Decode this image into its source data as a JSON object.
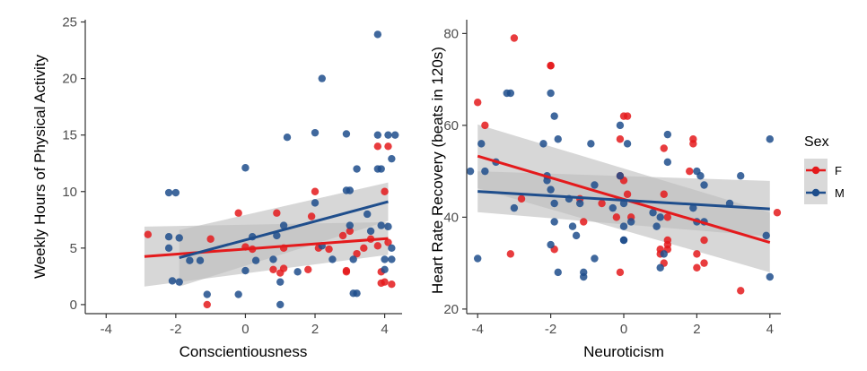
{
  "chart_data": [
    {
      "type": "scatter",
      "xlabel": "Conscientiousness",
      "ylabel": "Weekly Hours of Physical Activity",
      "xlim": [
        -4.6,
        4.5
      ],
      "ylim": [
        -0.8,
        25.2
      ],
      "xticks": [
        "-4",
        "-2",
        "0",
        "2",
        "4"
      ],
      "yticks": [
        "0",
        "5",
        "10",
        "15",
        "20",
        "25"
      ],
      "xtick_values": [
        -4,
        -2,
        0,
        2,
        4
      ],
      "ytick_values": [
        0,
        5,
        10,
        15,
        20,
        25
      ],
      "series": [
        {
          "name": "F",
          "points": [
            [
              -2.8,
              6.2
            ],
            [
              -1.1,
              0
            ],
            [
              -1.0,
              5.8
            ],
            [
              -0.2,
              8.1
            ],
            [
              0.0,
              5.1
            ],
            [
              0.2,
              4.9
            ],
            [
              0.8,
              3.1
            ],
            [
              0.9,
              8.1
            ],
            [
              1.0,
              2.8
            ],
            [
              1.1,
              3.2
            ],
            [
              1.1,
              5.0
            ],
            [
              1.8,
              3.1
            ],
            [
              1.9,
              7.8
            ],
            [
              2.0,
              10.0
            ],
            [
              2.1,
              5.0
            ],
            [
              2.4,
              4.9
            ],
            [
              2.8,
              6.1
            ],
            [
              2.9,
              3.0
            ],
            [
              2.9,
              2.9
            ],
            [
              3.0,
              6.5
            ],
            [
              3.2,
              4.5
            ],
            [
              3.4,
              5.0
            ],
            [
              3.6,
              5.8
            ],
            [
              3.8,
              14.0
            ],
            [
              3.8,
              5.2
            ],
            [
              3.9,
              2.9
            ],
            [
              3.9,
              1.9
            ],
            [
              4.0,
              10.0
            ],
            [
              4.0,
              2.0
            ],
            [
              4.1,
              14.0
            ],
            [
              4.1,
              5.5
            ],
            [
              4.2,
              1.8
            ]
          ],
          "fit": {
            "x_start": -2.9,
            "y_start": 4.25,
            "x_end": 4.1,
            "y_end": 5.85,
            "ci_lower_start": 1.6,
            "ci_upper_start": 6.9,
            "ci_lower_end": 4.4,
            "ci_upper_end": 7.3
          }
        },
        {
          "name": "M",
          "points": [
            [
              -2.2,
              9.9
            ],
            [
              -2.0,
              9.9
            ],
            [
              -2.2,
              6.0
            ],
            [
              -2.2,
              5.0
            ],
            [
              -2.1,
              2.1
            ],
            [
              -1.9,
              2.0
            ],
            [
              -1.9,
              5.9
            ],
            [
              -1.6,
              3.9
            ],
            [
              -1.3,
              3.9
            ],
            [
              -1.1,
              0.9
            ],
            [
              -0.2,
              0.9
            ],
            [
              0.0,
              3.0
            ],
            [
              0.0,
              12.1
            ],
            [
              0.2,
              6.0
            ],
            [
              0.3,
              3.9
            ],
            [
              0.8,
              4.0
            ],
            [
              0.9,
              6.1
            ],
            [
              1.0,
              0
            ],
            [
              1.0,
              2.0
            ],
            [
              1.1,
              7.0
            ],
            [
              1.2,
              14.8
            ],
            [
              1.5,
              2.9
            ],
            [
              2.0,
              15.2
            ],
            [
              2.0,
              9.0
            ],
            [
              2.2,
              20.0
            ],
            [
              2.2,
              5.2
            ],
            [
              2.5,
              4.0
            ],
            [
              2.9,
              15.1
            ],
            [
              2.9,
              10.1
            ],
            [
              3.0,
              10.1
            ],
            [
              3.0,
              7.0
            ],
            [
              3.1,
              4.0
            ],
            [
              3.1,
              1.0
            ],
            [
              3.2,
              12.0
            ],
            [
              3.2,
              1.0
            ],
            [
              3.5,
              8.0
            ],
            [
              3.6,
              6.5
            ],
            [
              3.8,
              23.9
            ],
            [
              3.8,
              15.0
            ],
            [
              3.8,
              12.0
            ],
            [
              3.9,
              12.0
            ],
            [
              3.9,
              7.0
            ],
            [
              4.0,
              4.0
            ],
            [
              4.0,
              3.1
            ],
            [
              4.1,
              15.0
            ],
            [
              4.1,
              6.9
            ],
            [
              4.2,
              12.9
            ],
            [
              4.2,
              5.0
            ],
            [
              4.2,
              4.0
            ],
            [
              4.3,
              15.0
            ]
          ],
          "fit": {
            "x_start": -1.9,
            "y_start": 4.15,
            "x_end": 4.1,
            "y_end": 9.1,
            "ci_lower_start": 1.6,
            "ci_upper_start": 6.6,
            "ci_lower_end": 7.4,
            "ci_upper_end": 10.8
          }
        }
      ]
    },
    {
      "type": "scatter",
      "xlabel": "Neuroticism",
      "ylabel": "Heart Rate Recovery (beats in 120s)",
      "xlim": [
        -4.3,
        4.3
      ],
      "ylim": [
        19.0,
        83.0
      ],
      "xticks": [
        "-4",
        "-2",
        "0",
        "2",
        "4"
      ],
      "yticks": [
        "20",
        "40",
        "60",
        "80"
      ],
      "xtick_values": [
        -4,
        -2,
        0,
        2,
        4
      ],
      "ytick_values": [
        20,
        40,
        60,
        80
      ],
      "series": [
        {
          "name": "F",
          "points": [
            [
              -4.0,
              65
            ],
            [
              -3.8,
              60
            ],
            [
              -3.0,
              79
            ],
            [
              -3.1,
              32
            ],
            [
              -2.8,
              44
            ],
            [
              -2.0,
              73
            ],
            [
              -2.0,
              73
            ],
            [
              -1.9,
              33
            ],
            [
              -1.2,
              44
            ],
            [
              -1.1,
              39
            ],
            [
              -0.6,
              43
            ],
            [
              -0.2,
              40
            ],
            [
              -0.1,
              49
            ],
            [
              -0.1,
              57
            ],
            [
              -0.1,
              28
            ],
            [
              0.0,
              48
            ],
            [
              0.0,
              62
            ],
            [
              0.1,
              62
            ],
            [
              0.1,
              45
            ],
            [
              0.2,
              40
            ],
            [
              1.0,
              32
            ],
            [
              1.0,
              33
            ],
            [
              1.1,
              30
            ],
            [
              1.1,
              45
            ],
            [
              1.1,
              55
            ],
            [
              1.2,
              35
            ],
            [
              1.2,
              34
            ],
            [
              1.2,
              33
            ],
            [
              1.2,
              40
            ],
            [
              1.8,
              50
            ],
            [
              1.9,
              57
            ],
            [
              1.9,
              56
            ],
            [
              2.0,
              32
            ],
            [
              2.0,
              29
            ],
            [
              2.2,
              35
            ],
            [
              2.2,
              30
            ],
            [
              3.2,
              24
            ],
            [
              4.2,
              41
            ]
          ],
          "fit": {
            "x_start": -4.0,
            "y_start": 53.3,
            "x_end": 4.0,
            "y_end": 34.5,
            "ci_lower_start": 46.3,
            "ci_upper_start": 60.2,
            "ci_lower_end": 28.0,
            "ci_upper_end": 41.0
          }
        },
        {
          "name": "M",
          "points": [
            [
              -4.2,
              50
            ],
            [
              -4.0,
              31
            ],
            [
              -3.9,
              56
            ],
            [
              -3.8,
              50
            ],
            [
              -3.5,
              52
            ],
            [
              -3.2,
              67
            ],
            [
              -3.1,
              67
            ],
            [
              -3.0,
              42
            ],
            [
              -2.2,
              56
            ],
            [
              -2.1,
              49
            ],
            [
              -2.1,
              48
            ],
            [
              -2.0,
              67
            ],
            [
              -2.0,
              46
            ],
            [
              -2.0,
              34
            ],
            [
              -1.9,
              43
            ],
            [
              -1.9,
              39
            ],
            [
              -1.9,
              62
            ],
            [
              -1.8,
              28
            ],
            [
              -1.8,
              57
            ],
            [
              -1.5,
              44
            ],
            [
              -1.4,
              38
            ],
            [
              -1.3,
              36
            ],
            [
              -1.2,
              43
            ],
            [
              -1.1,
              28
            ],
            [
              -1.1,
              27
            ],
            [
              -0.9,
              56
            ],
            [
              -0.8,
              31
            ],
            [
              -0.8,
              47
            ],
            [
              -0.3,
              42
            ],
            [
              -0.1,
              60
            ],
            [
              -0.1,
              49
            ],
            [
              0.0,
              43
            ],
            [
              0.0,
              35
            ],
            [
              0.0,
              38
            ],
            [
              0.0,
              35
            ],
            [
              0.1,
              56
            ],
            [
              0.2,
              39
            ],
            [
              0.8,
              41
            ],
            [
              0.9,
              38
            ],
            [
              1.0,
              40
            ],
            [
              1.0,
              29
            ],
            [
              1.1,
              32
            ],
            [
              1.2,
              58
            ],
            [
              1.2,
              52
            ],
            [
              1.9,
              42
            ],
            [
              2.0,
              39
            ],
            [
              2.0,
              50
            ],
            [
              2.1,
              49
            ],
            [
              2.2,
              47
            ],
            [
              2.2,
              39
            ],
            [
              2.9,
              43
            ],
            [
              3.2,
              49
            ],
            [
              3.9,
              36
            ],
            [
              4.0,
              27
            ],
            [
              4.0,
              57
            ]
          ],
          "fit": {
            "x_start": -4.0,
            "y_start": 45.6,
            "x_end": 4.0,
            "y_end": 41.8,
            "ci_lower_start": 41.1,
            "ci_upper_start": 50.0,
            "ci_lower_end": 35.8,
            "ci_upper_end": 47.9
          }
        }
      ]
    }
  ],
  "legend": {
    "title": "Sex",
    "items": [
      {
        "label": "F",
        "color": "#e41a1c"
      },
      {
        "label": "M",
        "color": "#1f4e8c"
      }
    ]
  },
  "colors": {
    "F": "#e41a1c",
    "M": "#1f4e8c",
    "ribbon": "#bdbdbd",
    "axis": "#333333"
  }
}
